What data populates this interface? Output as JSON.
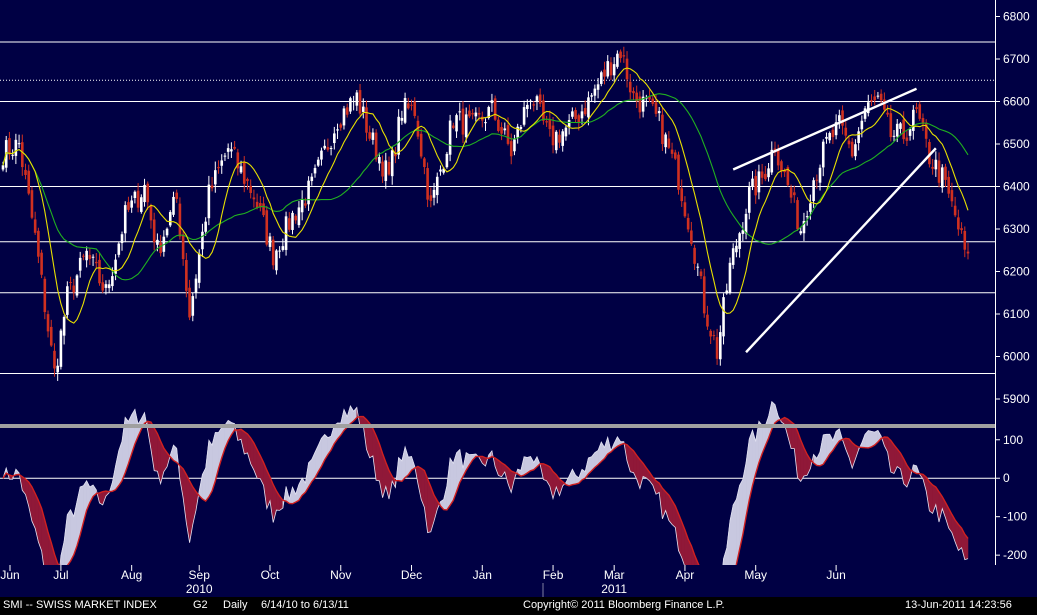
{
  "footer": {
    "index_label": "SMI -- SWISS MARKET INDEX",
    "chart_code": "G2",
    "frequency": "Daily",
    "date_range": "6/14/10 to 6/13/11",
    "copyright": "Copyright© 2011 Bloomberg Finance L.P.",
    "timestamp": "13-Jun-2011 14:23:56"
  },
  "colors": {
    "background": "#000044",
    "candle_up": "#ffffff",
    "candle_down": "#d03020",
    "ma_short": "#e8e000",
    "ma_long": "#20b020",
    "oscillator_fill_up": "#c8c8e0",
    "oscillator_fill_down": "#901838",
    "oscillator_signal": "#d02020",
    "trendline": "#ffffff",
    "divider": "#a0a0a0"
  },
  "chart_data": [
    {
      "type": "candlestick",
      "title": "",
      "yticks": [
        5900,
        6000,
        6100,
        6200,
        6300,
        6400,
        6500,
        6600,
        6700,
        6800
      ],
      "ylim": [
        5860,
        6820
      ],
      "horizontal_levels": [
        5960,
        6150,
        6270,
        6400,
        6600,
        6740
      ],
      "dotted_level": 6650,
      "month_labels": [
        "Jun",
        "Jul",
        "Aug",
        "Sep",
        "Oct",
        "Nov",
        "Dec",
        "Jan",
        "Feb",
        "Mar",
        "Apr",
        "May",
        "Jun"
      ],
      "year_labels": [
        "2010",
        "2011"
      ],
      "anchors": [
        [
          0,
          6480
        ],
        [
          5,
          6500
        ],
        [
          10,
          6280
        ],
        [
          16,
          5960
        ],
        [
          20,
          6140
        ],
        [
          26,
          6240
        ],
        [
          32,
          6150
        ],
        [
          38,
          6330
        ],
        [
          44,
          6400
        ],
        [
          48,
          6250
        ],
        [
          54,
          6370
        ],
        [
          58,
          6100
        ],
        [
          64,
          6380
        ],
        [
          70,
          6490
        ],
        [
          78,
          6380
        ],
        [
          84,
          6240
        ],
        [
          90,
          6330
        ],
        [
          96,
          6400
        ],
        [
          104,
          6560
        ],
        [
          110,
          6610
        ],
        [
          114,
          6520
        ],
        [
          120,
          6420
        ],
        [
          124,
          6580
        ],
        [
          128,
          6580
        ],
        [
          133,
          6350
        ],
        [
          140,
          6560
        ],
        [
          146,
          6540
        ],
        [
          152,
          6580
        ],
        [
          158,
          6480
        ],
        [
          164,
          6620
        ],
        [
          170,
          6510
        ],
        [
          176,
          6540
        ],
        [
          182,
          6600
        ],
        [
          188,
          6680
        ],
        [
          192,
          6720
        ],
        [
          196,
          6610
        ],
        [
          200,
          6590
        ],
        [
          204,
          6550
        ],
        [
          210,
          6420
        ],
        [
          214,
          6290
        ],
        [
          218,
          6120
        ],
        [
          222,
          6010
        ],
        [
          226,
          6210
        ],
        [
          232,
          6380
        ],
        [
          236,
          6420
        ],
        [
          240,
          6500
        ],
        [
          244,
          6400
        ],
        [
          248,
          6300
        ],
        [
          252,
          6420
        ],
        [
          256,
          6500
        ],
        [
          260,
          6540
        ],
        [
          264,
          6480
        ],
        [
          268,
          6580
        ],
        [
          272,
          6600
        ],
        [
          276,
          6520
        ],
        [
          280,
          6520
        ],
        [
          284,
          6570
        ],
        [
          288,
          6470
        ],
        [
          292,
          6420
        ],
        [
          296,
          6330
        ],
        [
          300,
          6220
        ]
      ],
      "ma_short_period": 10,
      "ma_long_period": 30,
      "trendlines": [
        {
          "from": [
            227,
            6440
          ],
          "to": [
            284,
            6630
          ]
        },
        {
          "from": [
            231,
            6010
          ],
          "to": [
            290,
            6490
          ]
        }
      ]
    },
    {
      "type": "area",
      "title": "",
      "yticks": [
        -200,
        -100,
        0,
        100
      ],
      "ylim": [
        -210,
        115
      ],
      "zero_line": 0
    }
  ]
}
